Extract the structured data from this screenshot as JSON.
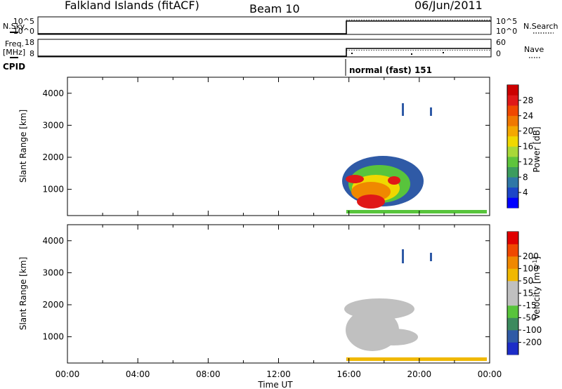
{
  "header": {
    "station": "Falkland Islands (fitACF)",
    "beam": "Beam 10",
    "date": "06/Jun/2011"
  },
  "strip_panels": {
    "nsky_label": "N.Sky",
    "nsky_ticks": [
      "10^5",
      "10^0"
    ],
    "nsearch_label": "N.Search",
    "nsearch_ticks": [
      "10^5",
      "10^0"
    ],
    "freq_label_top": "Freq.",
    "freq_label_unit": "[MHz]",
    "freq_ticks": [
      "18",
      "8"
    ],
    "nave_label": "Nave",
    "nave_ticks": [
      "60",
      "0"
    ],
    "cpid_label": "CPID",
    "cpid_mode": "normal (fast) 151"
  },
  "chart_data": [
    {
      "type": "heatmap",
      "panel": "power",
      "ylabel": "Slant Range [km]",
      "yticks": [
        "4000",
        "3000",
        "2000",
        "1000"
      ],
      "ytick_values": [
        4000,
        3000,
        2000,
        1000
      ],
      "ylim": [
        180,
        4500
      ],
      "xlim_hours": [
        0,
        24
      ],
      "data_start_hour": 16,
      "colorbar_label": "Power [dB]",
      "colorbar_ticks": [
        "28",
        "24",
        "20",
        "16",
        "12",
        "8",
        "4"
      ],
      "colorbar_colors": [
        "#0000ff",
        "#1c46c8",
        "#2f77a6",
        "#3c9c5e",
        "#5ec43c",
        "#a8d838",
        "#f0d800",
        "#f4a800",
        "#f07800",
        "#f04800",
        "#e01818",
        "#cc0000"
      ]
    },
    {
      "type": "heatmap",
      "panel": "velocity",
      "ylabel": "Slant Range [km]",
      "yticks": [
        "4000",
        "3000",
        "2000",
        "1000"
      ],
      "ytick_values": [
        4000,
        3000,
        2000,
        1000
      ],
      "ylim": [
        180,
        4500
      ],
      "xlim_hours": [
        0,
        24
      ],
      "colorbar_label": "Velocity [m s",
      "colorbar_label_sup": "-1",
      "colorbar_label_end": "]",
      "colorbar_ticks": [
        "200",
        "100",
        "50",
        "15",
        "-15",
        "-50",
        "-100",
        "-200"
      ],
      "colorbar_colors": [
        "#1c2cc8",
        "#2f5aa6",
        "#3c8a5e",
        "#58c43c",
        "#c0c0c0",
        "#c0c0c0",
        "#f0b800",
        "#f08800",
        "#f04800",
        "#e00000"
      ],
      "xlabel": "Time UT",
      "xticks": [
        "00:00",
        "04:00",
        "08:00",
        "12:00",
        "16:00",
        "20:00",
        "00:00"
      ]
    }
  ]
}
